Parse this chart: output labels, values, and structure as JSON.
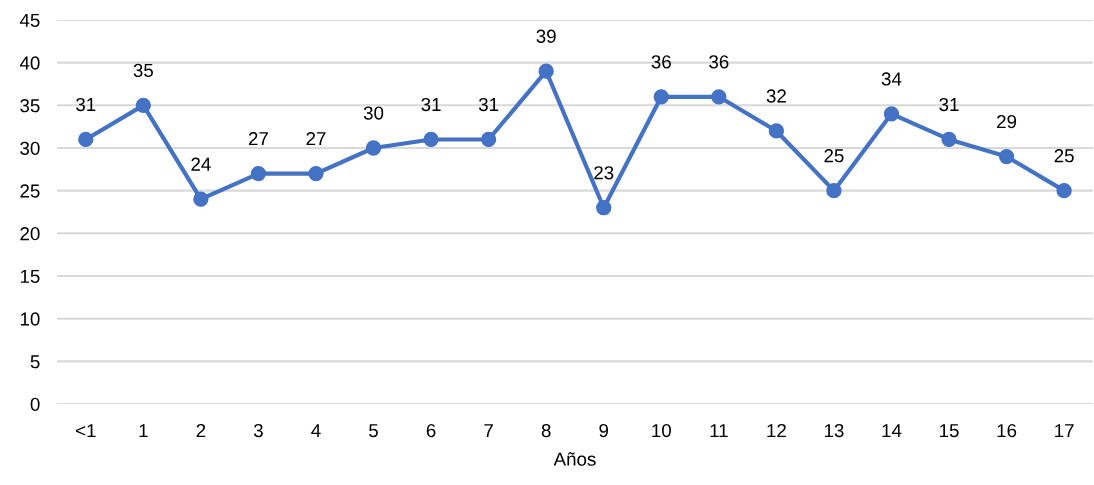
{
  "chart_data": {
    "type": "line",
    "xlabel": "Años",
    "categories": [
      "<1",
      "1",
      "2",
      "3",
      "4",
      "5",
      "6",
      "7",
      "8",
      "9",
      "10",
      "11",
      "12",
      "13",
      "14",
      "15",
      "16",
      "17"
    ],
    "series": [
      {
        "color": "#4472c4",
        "values": [
          31,
          35,
          24,
          27,
          27,
          30,
          31,
          31,
          39,
          23,
          36,
          36,
          32,
          25,
          34,
          31,
          29,
          25
        ]
      }
    ],
    "ylim": [
      0,
      45
    ],
    "yticks": [
      0,
      5,
      10,
      15,
      20,
      25,
      30,
      35,
      40,
      45
    ],
    "grid": "y",
    "marker": "circle",
    "line_style": "solid",
    "data_labels": true
  }
}
